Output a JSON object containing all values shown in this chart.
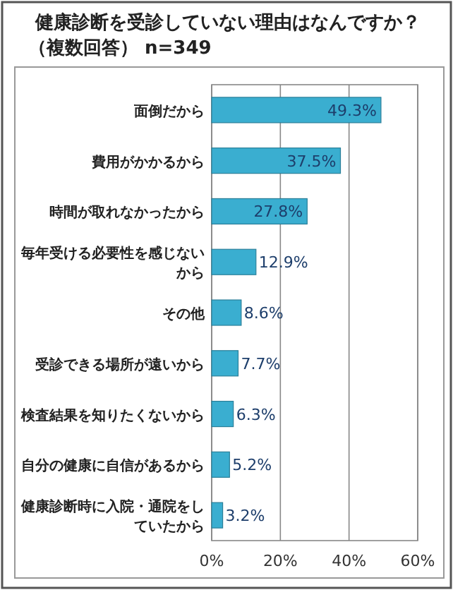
{
  "chart_data": {
    "type": "bar",
    "orientation": "horizontal",
    "title": "健康診断を受診していない理由はなんですか？",
    "subtitle": "（複数回答） n=349",
    "categories": [
      "面倒だから",
      "費用がかかるから",
      "時間が取れなかったから",
      "毎年受ける必要性を感じないから",
      "その他",
      "受診できる場所が遠いから",
      "検査結果を知りたくないから",
      "自分の健康に自信があるから",
      "健康診断時に入院・通院をしていたから"
    ],
    "values": [
      49.3,
      37.5,
      27.8,
      12.9,
      8.6,
      7.7,
      6.3,
      5.2,
      3.2
    ],
    "value_labels": [
      "49.3%",
      "37.5%",
      "27.8%",
      "12.9%",
      "8.6%",
      "7.7%",
      "6.3%",
      "5.2%",
      "3.2%"
    ],
    "color": "#3aaed0",
    "xlim": [
      0,
      60
    ],
    "xticks": [
      {
        "value": 0,
        "label": "0%"
      },
      {
        "value": 20,
        "label": "20%"
      },
      {
        "value": 40,
        "label": "40%"
      },
      {
        "value": 60,
        "label": "60%"
      }
    ],
    "grid": "x"
  }
}
